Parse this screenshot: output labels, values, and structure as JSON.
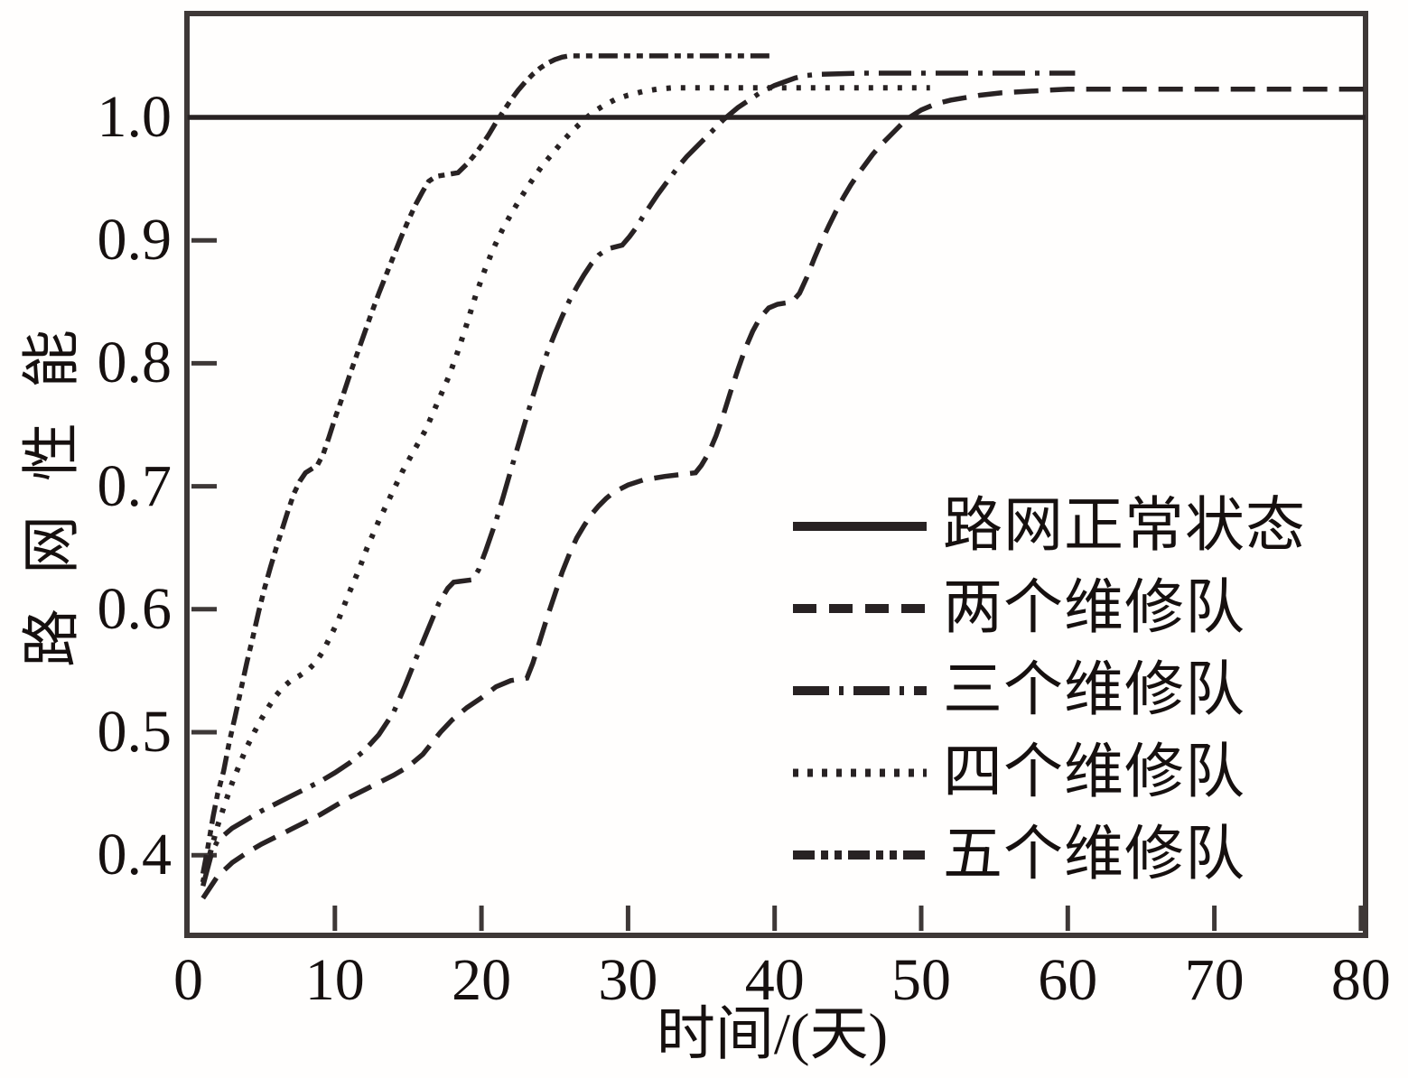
{
  "axis_titles": {
    "x": "时间/(天)",
    "y": "路网性能"
  },
  "legend": [
    {
      "key": "normal-state",
      "label": "路网正常状态",
      "style": "solid"
    },
    {
      "key": "two-teams",
      "label": "两个维修队",
      "style": "dashed"
    },
    {
      "key": "three-teams",
      "label": "三个维修队",
      "style": "dash-dot"
    },
    {
      "key": "four-teams",
      "label": "四个维修队",
      "style": "dotted"
    },
    {
      "key": "five-teams",
      "label": "五个维修队",
      "style": "dash-dot-dot"
    }
  ],
  "line_styles": {
    "chart": {
      "solid": "",
      "dashed": "27 13",
      "dash-dot": "36 11 5 11",
      "dotted": "5 11",
      "dash-dot-dot": "21 7 7 7 7 7"
    },
    "legend": {
      "solid": "",
      "dashed": "26 14",
      "dash-dot": "40 11 5 11",
      "dotted": "6 10",
      "dash-dot-dot": "24 7 8 7 8 7"
    }
  },
  "colors": {
    "line": "#282223",
    "border": "#3e3837",
    "text": "#16100f",
    "background": "#fffefd"
  },
  "chart_data": {
    "type": "line",
    "title": "",
    "xlabel": "时间/(天)",
    "ylabel": "路网性能",
    "xlim": [
      0,
      80.3
    ],
    "ylim": [
      0.335,
      1.084
    ],
    "grid": false,
    "legend_position": "inside lower right",
    "x_ticks": {
      "labels": [
        "0",
        "10",
        "20",
        "30",
        "40",
        "50",
        "60",
        "70",
        "80"
      ],
      "values": [
        0,
        10,
        20,
        30,
        40,
        50,
        60,
        70,
        80
      ]
    },
    "y_ticks": {
      "labels": [
        "1.0",
        "0.9",
        "0.8",
        "0.7",
        "0.6",
        "0.5",
        "0.4"
      ],
      "values": [
        1.0,
        0.9,
        0.8,
        0.7,
        0.6,
        0.5,
        0.4
      ]
    },
    "series": [
      {
        "key": "normal-state",
        "name": "路网正常状态",
        "style": "solid",
        "points": [
          [
            -0.05,
            1.0
          ],
          [
            80.3,
            1.0
          ]
        ]
      },
      {
        "key": "two-teams",
        "name": "两个维修队",
        "style": "dashed",
        "points": [
          [
            1,
            0.365
          ],
          [
            2,
            0.383
          ],
          [
            3,
            0.394
          ],
          [
            4,
            0.402
          ],
          [
            5,
            0.409
          ],
          [
            6,
            0.415
          ],
          [
            7,
            0.421
          ],
          [
            8,
            0.427
          ],
          [
            9,
            0.433
          ],
          [
            10,
            0.44
          ],
          [
            11,
            0.447
          ],
          [
            12,
            0.453
          ],
          [
            13,
            0.459
          ],
          [
            14,
            0.465
          ],
          [
            15,
            0.472
          ],
          [
            16,
            0.482
          ],
          [
            16.6,
            0.491
          ],
          [
            17.2,
            0.5
          ],
          [
            18,
            0.51
          ],
          [
            19,
            0.52
          ],
          [
            20,
            0.528
          ],
          [
            21,
            0.537
          ],
          [
            22,
            0.542
          ],
          [
            23.1,
            0.544
          ],
          [
            23.5,
            0.556
          ],
          [
            24,
            0.575
          ],
          [
            24.5,
            0.594
          ],
          [
            25,
            0.612
          ],
          [
            25.5,
            0.63
          ],
          [
            26,
            0.645
          ],
          [
            26.5,
            0.658
          ],
          [
            27,
            0.668
          ],
          [
            27.5,
            0.677
          ],
          [
            28,
            0.684
          ],
          [
            28.5,
            0.69
          ],
          [
            29,
            0.695
          ],
          [
            30,
            0.701
          ],
          [
            31,
            0.705
          ],
          [
            32.5,
            0.708
          ],
          [
            34.6,
            0.711
          ],
          [
            35,
            0.717
          ],
          [
            35.5,
            0.727
          ],
          [
            36,
            0.741
          ],
          [
            36.5,
            0.758
          ],
          [
            37,
            0.777
          ],
          [
            37.5,
            0.795
          ],
          [
            38,
            0.812
          ],
          [
            38.5,
            0.826
          ],
          [
            39,
            0.837
          ],
          [
            39.6,
            0.845
          ],
          [
            40.2,
            0.848
          ],
          [
            41.2,
            0.85
          ],
          [
            41.7,
            0.857
          ],
          [
            42.2,
            0.87
          ],
          [
            42.7,
            0.885
          ],
          [
            43.2,
            0.899
          ],
          [
            43.7,
            0.912
          ],
          [
            44.2,
            0.924
          ],
          [
            44.7,
            0.935
          ],
          [
            45.2,
            0.945
          ],
          [
            45.7,
            0.954
          ],
          [
            46.2,
            0.962
          ],
          [
            46.7,
            0.97
          ],
          [
            47.2,
            0.977
          ],
          [
            47.7,
            0.983
          ],
          [
            48.2,
            0.989
          ],
          [
            48.7,
            0.995
          ],
          [
            49.2,
            1.0
          ],
          [
            50,
            1.006
          ],
          [
            51,
            1.011
          ],
          [
            52,
            1.014
          ],
          [
            53,
            1.016
          ],
          [
            54,
            1.018
          ],
          [
            55.5,
            1.02
          ],
          [
            57,
            1.021
          ],
          [
            58.5,
            1.022
          ],
          [
            60,
            1.023
          ],
          [
            65,
            1.023
          ],
          [
            70,
            1.023
          ],
          [
            75,
            1.023
          ],
          [
            80.3,
            1.023
          ]
        ]
      },
      {
        "key": "three-teams",
        "name": "三个维修队",
        "style": "dash-dot",
        "points": [
          [
            1,
            0.375
          ],
          [
            1.6,
            0.402
          ],
          [
            2,
            0.412
          ],
          [
            3,
            0.422
          ],
          [
            4,
            0.429
          ],
          [
            5,
            0.436
          ],
          [
            6,
            0.442
          ],
          [
            7,
            0.448
          ],
          [
            8,
            0.454
          ],
          [
            9,
            0.46
          ],
          [
            10,
            0.467
          ],
          [
            11,
            0.475
          ],
          [
            12,
            0.485
          ],
          [
            13,
            0.498
          ],
          [
            14,
            0.516
          ],
          [
            14.8,
            0.538
          ],
          [
            15.6,
            0.562
          ],
          [
            16.4,
            0.585
          ],
          [
            17.1,
            0.605
          ],
          [
            17.7,
            0.617
          ],
          [
            18.1,
            0.622
          ],
          [
            19.4,
            0.624
          ],
          [
            19.8,
            0.632
          ],
          [
            20.3,
            0.648
          ],
          [
            21,
            0.672
          ],
          [
            21.5,
            0.692
          ],
          [
            22,
            0.713
          ],
          [
            22.5,
            0.733
          ],
          [
            23,
            0.753
          ],
          [
            23.5,
            0.773
          ],
          [
            24,
            0.792
          ],
          [
            24.5,
            0.809
          ],
          [
            25,
            0.824
          ],
          [
            25.5,
            0.838
          ],
          [
            26,
            0.851
          ],
          [
            26.5,
            0.862
          ],
          [
            27,
            0.872
          ],
          [
            27.5,
            0.881
          ],
          [
            28,
            0.888
          ],
          [
            28.6,
            0.893
          ],
          [
            29.6,
            0.896
          ],
          [
            30.1,
            0.903
          ],
          [
            30.6,
            0.911
          ],
          [
            31,
            0.919
          ],
          [
            31.5,
            0.928
          ],
          [
            32,
            0.937
          ],
          [
            32.5,
            0.945
          ],
          [
            33,
            0.953
          ],
          [
            33.5,
            0.961
          ],
          [
            34,
            0.968
          ],
          [
            34.5,
            0.974
          ],
          [
            35,
            0.98
          ],
          [
            35.5,
            0.986
          ],
          [
            36,
            0.992
          ],
          [
            36.5,
            0.998
          ],
          [
            37,
            1.003
          ],
          [
            37.5,
            1.008
          ],
          [
            38,
            1.012
          ],
          [
            38.5,
            1.016
          ],
          [
            39,
            1.02
          ],
          [
            39.5,
            1.023
          ],
          [
            40,
            1.026
          ],
          [
            40.7,
            1.029
          ],
          [
            41.4,
            1.032
          ],
          [
            42.1,
            1.034
          ],
          [
            43,
            1.035
          ],
          [
            46,
            1.036
          ],
          [
            50,
            1.036
          ],
          [
            55,
            1.036
          ],
          [
            60.5,
            1.036
          ]
        ]
      },
      {
        "key": "four-teams",
        "name": "四个维修队",
        "style": "dotted",
        "points": [
          [
            1,
            0.378
          ],
          [
            1.5,
            0.402
          ],
          [
            2,
            0.424
          ],
          [
            2.5,
            0.442
          ],
          [
            3,
            0.459
          ],
          [
            3.5,
            0.474
          ],
          [
            4,
            0.488
          ],
          [
            4.5,
            0.5
          ],
          [
            5,
            0.511
          ],
          [
            5.5,
            0.521
          ],
          [
            6,
            0.53
          ],
          [
            6.5,
            0.537
          ],
          [
            7,
            0.542
          ],
          [
            7.6,
            0.546
          ],
          [
            8.2,
            0.551
          ],
          [
            8.7,
            0.557
          ],
          [
            9.2,
            0.566
          ],
          [
            9.7,
            0.578
          ],
          [
            10.2,
            0.59
          ],
          [
            11,
            0.614
          ],
          [
            11.6,
            0.631
          ],
          [
            12.2,
            0.65
          ],
          [
            13,
            0.672
          ],
          [
            13.8,
            0.692
          ],
          [
            14.6,
            0.712
          ],
          [
            15.4,
            0.729
          ],
          [
            16.2,
            0.746
          ],
          [
            17,
            0.768
          ],
          [
            17.8,
            0.79
          ],
          [
            18.4,
            0.81
          ],
          [
            19,
            0.832
          ],
          [
            19.6,
            0.855
          ],
          [
            20.2,
            0.875
          ],
          [
            20.8,
            0.893
          ],
          [
            21.4,
            0.908
          ],
          [
            22,
            0.921
          ],
          [
            22.7,
            0.935
          ],
          [
            23.4,
            0.948
          ],
          [
            24.1,
            0.96
          ],
          [
            24.8,
            0.97
          ],
          [
            25.5,
            0.98
          ],
          [
            26.2,
            0.989
          ],
          [
            27,
            0.998
          ],
          [
            27.7,
            1.005
          ],
          [
            28.4,
            1.01
          ],
          [
            29.2,
            1.015
          ],
          [
            30,
            1.018
          ],
          [
            31,
            1.021
          ],
          [
            32,
            1.023
          ],
          [
            33,
            1.024
          ],
          [
            36,
            1.024
          ],
          [
            40,
            1.024
          ],
          [
            45,
            1.024
          ],
          [
            50.6,
            1.024
          ]
        ]
      },
      {
        "key": "five-teams",
        "name": "五个维修队",
        "style": "dash-dot-dot",
        "points": [
          [
            1,
            0.385
          ],
          [
            1.3,
            0.404
          ],
          [
            1.7,
            0.432
          ],
          [
            2,
            0.45
          ],
          [
            2.4,
            0.468
          ],
          [
            2.8,
            0.492
          ],
          [
            3.2,
            0.513
          ],
          [
            3.6,
            0.535
          ],
          [
            4,
            0.557
          ],
          [
            4.4,
            0.577
          ],
          [
            4.8,
            0.598
          ],
          [
            5.2,
            0.617
          ],
          [
            5.6,
            0.634
          ],
          [
            6,
            0.65
          ],
          [
            6.4,
            0.665
          ],
          [
            6.8,
            0.68
          ],
          [
            7.2,
            0.694
          ],
          [
            7.6,
            0.704
          ],
          [
            8,
            0.711
          ],
          [
            8.8,
            0.717
          ],
          [
            9.2,
            0.726
          ],
          [
            9.6,
            0.74
          ],
          [
            10,
            0.755
          ],
          [
            10.5,
            0.772
          ],
          [
            11,
            0.79
          ],
          [
            11.5,
            0.807
          ],
          [
            12,
            0.824
          ],
          [
            12.5,
            0.841
          ],
          [
            13,
            0.857
          ],
          [
            13.5,
            0.872
          ],
          [
            14,
            0.887
          ],
          [
            14.5,
            0.902
          ],
          [
            15,
            0.916
          ],
          [
            15.5,
            0.929
          ],
          [
            16,
            0.94
          ],
          [
            16.4,
            0.948
          ],
          [
            16.9,
            0.952
          ],
          [
            18.4,
            0.955
          ],
          [
            19,
            0.962
          ],
          [
            19.5,
            0.969
          ],
          [
            20,
            0.977
          ],
          [
            20.5,
            0.986
          ],
          [
            21,
            0.996
          ],
          [
            21.5,
            1.005
          ],
          [
            22,
            1.014
          ],
          [
            22.5,
            1.022
          ],
          [
            23,
            1.029
          ],
          [
            23.5,
            1.035
          ],
          [
            24,
            1.04
          ],
          [
            24.5,
            1.044
          ],
          [
            25,
            1.047
          ],
          [
            25.5,
            1.049
          ],
          [
            26,
            1.05
          ],
          [
            28,
            1.05
          ],
          [
            31,
            1.05
          ],
          [
            34,
            1.05
          ],
          [
            37,
            1.05
          ],
          [
            40,
            1.05
          ]
        ]
      }
    ]
  }
}
